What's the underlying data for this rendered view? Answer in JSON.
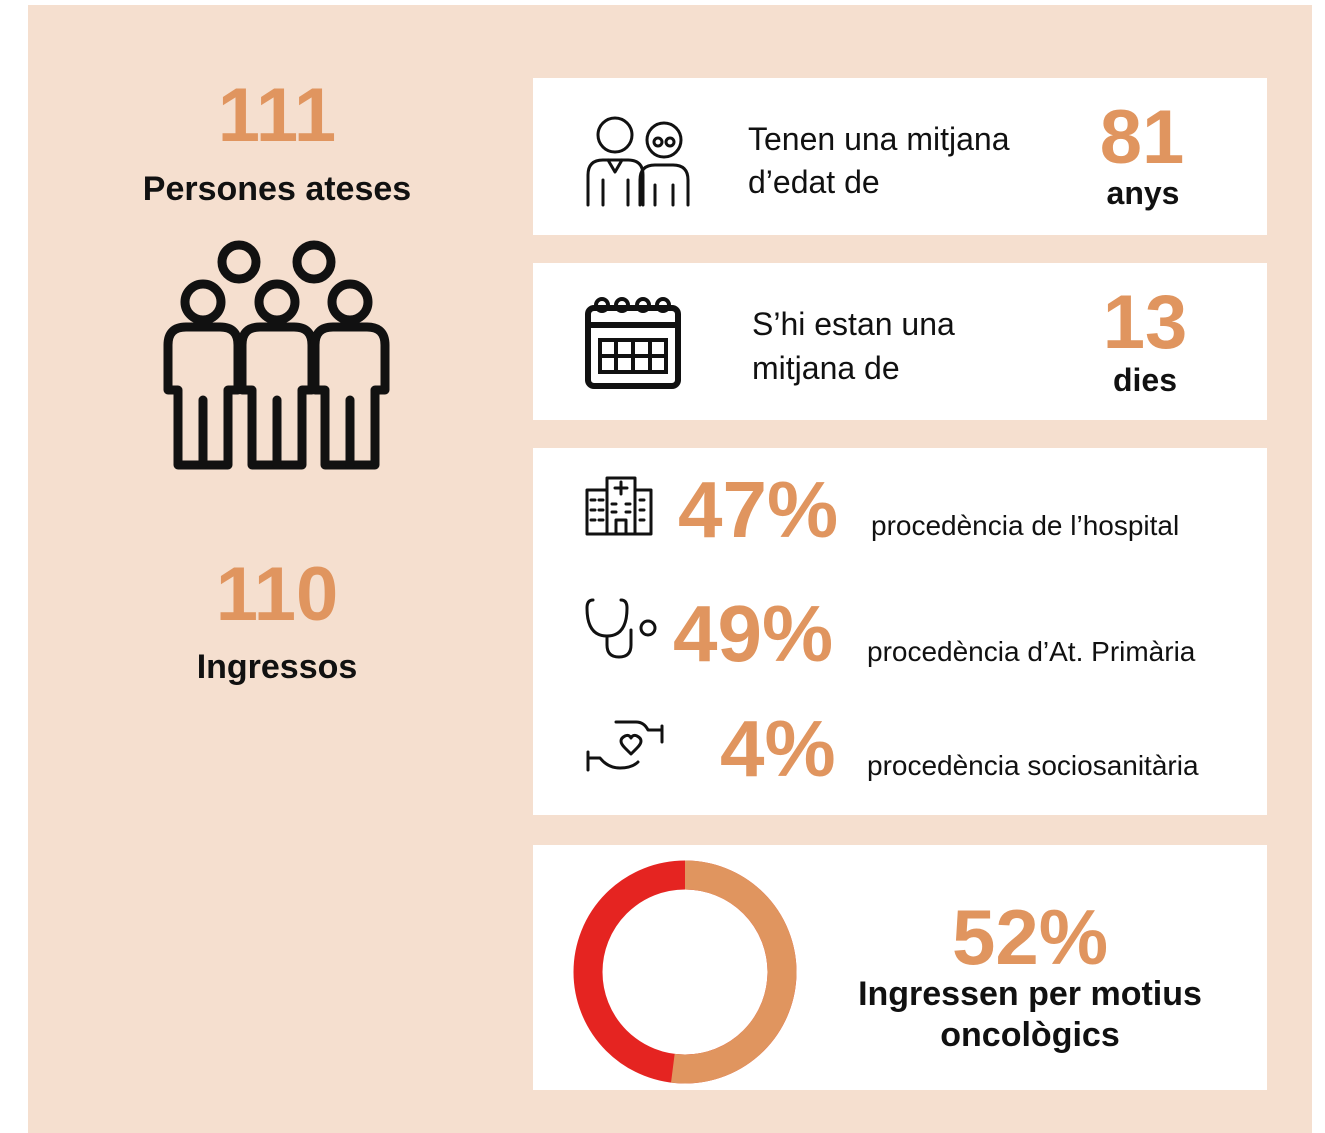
{
  "summary": [
    {
      "number": "111",
      "label": "Persones ateses"
    },
    {
      "number": "110",
      "label": "Ingressos"
    }
  ],
  "cards": [
    {
      "lines": [
        "Tenen una mitjana",
        "d’edat de"
      ],
      "number": "81",
      "unit": "anys"
    },
    {
      "lines": [
        "S’hi estan una",
        "mitjana de"
      ],
      "number": "13",
      "unit": "dies"
    }
  ],
  "origins": [
    {
      "value": "47%",
      "label": "procedència de l’hospital"
    },
    {
      "value": "49%",
      "label": "procedència d’At. Primària"
    },
    {
      "value": "4%",
      "label": "procedència sociosanitària"
    }
  ],
  "oncology": {
    "value": 52,
    "value_label": "52%",
    "lines": [
      "Ingressen per motius",
      "oncològics"
    ],
    "color": "#e0955f",
    "rest_color": "#e52421"
  }
}
